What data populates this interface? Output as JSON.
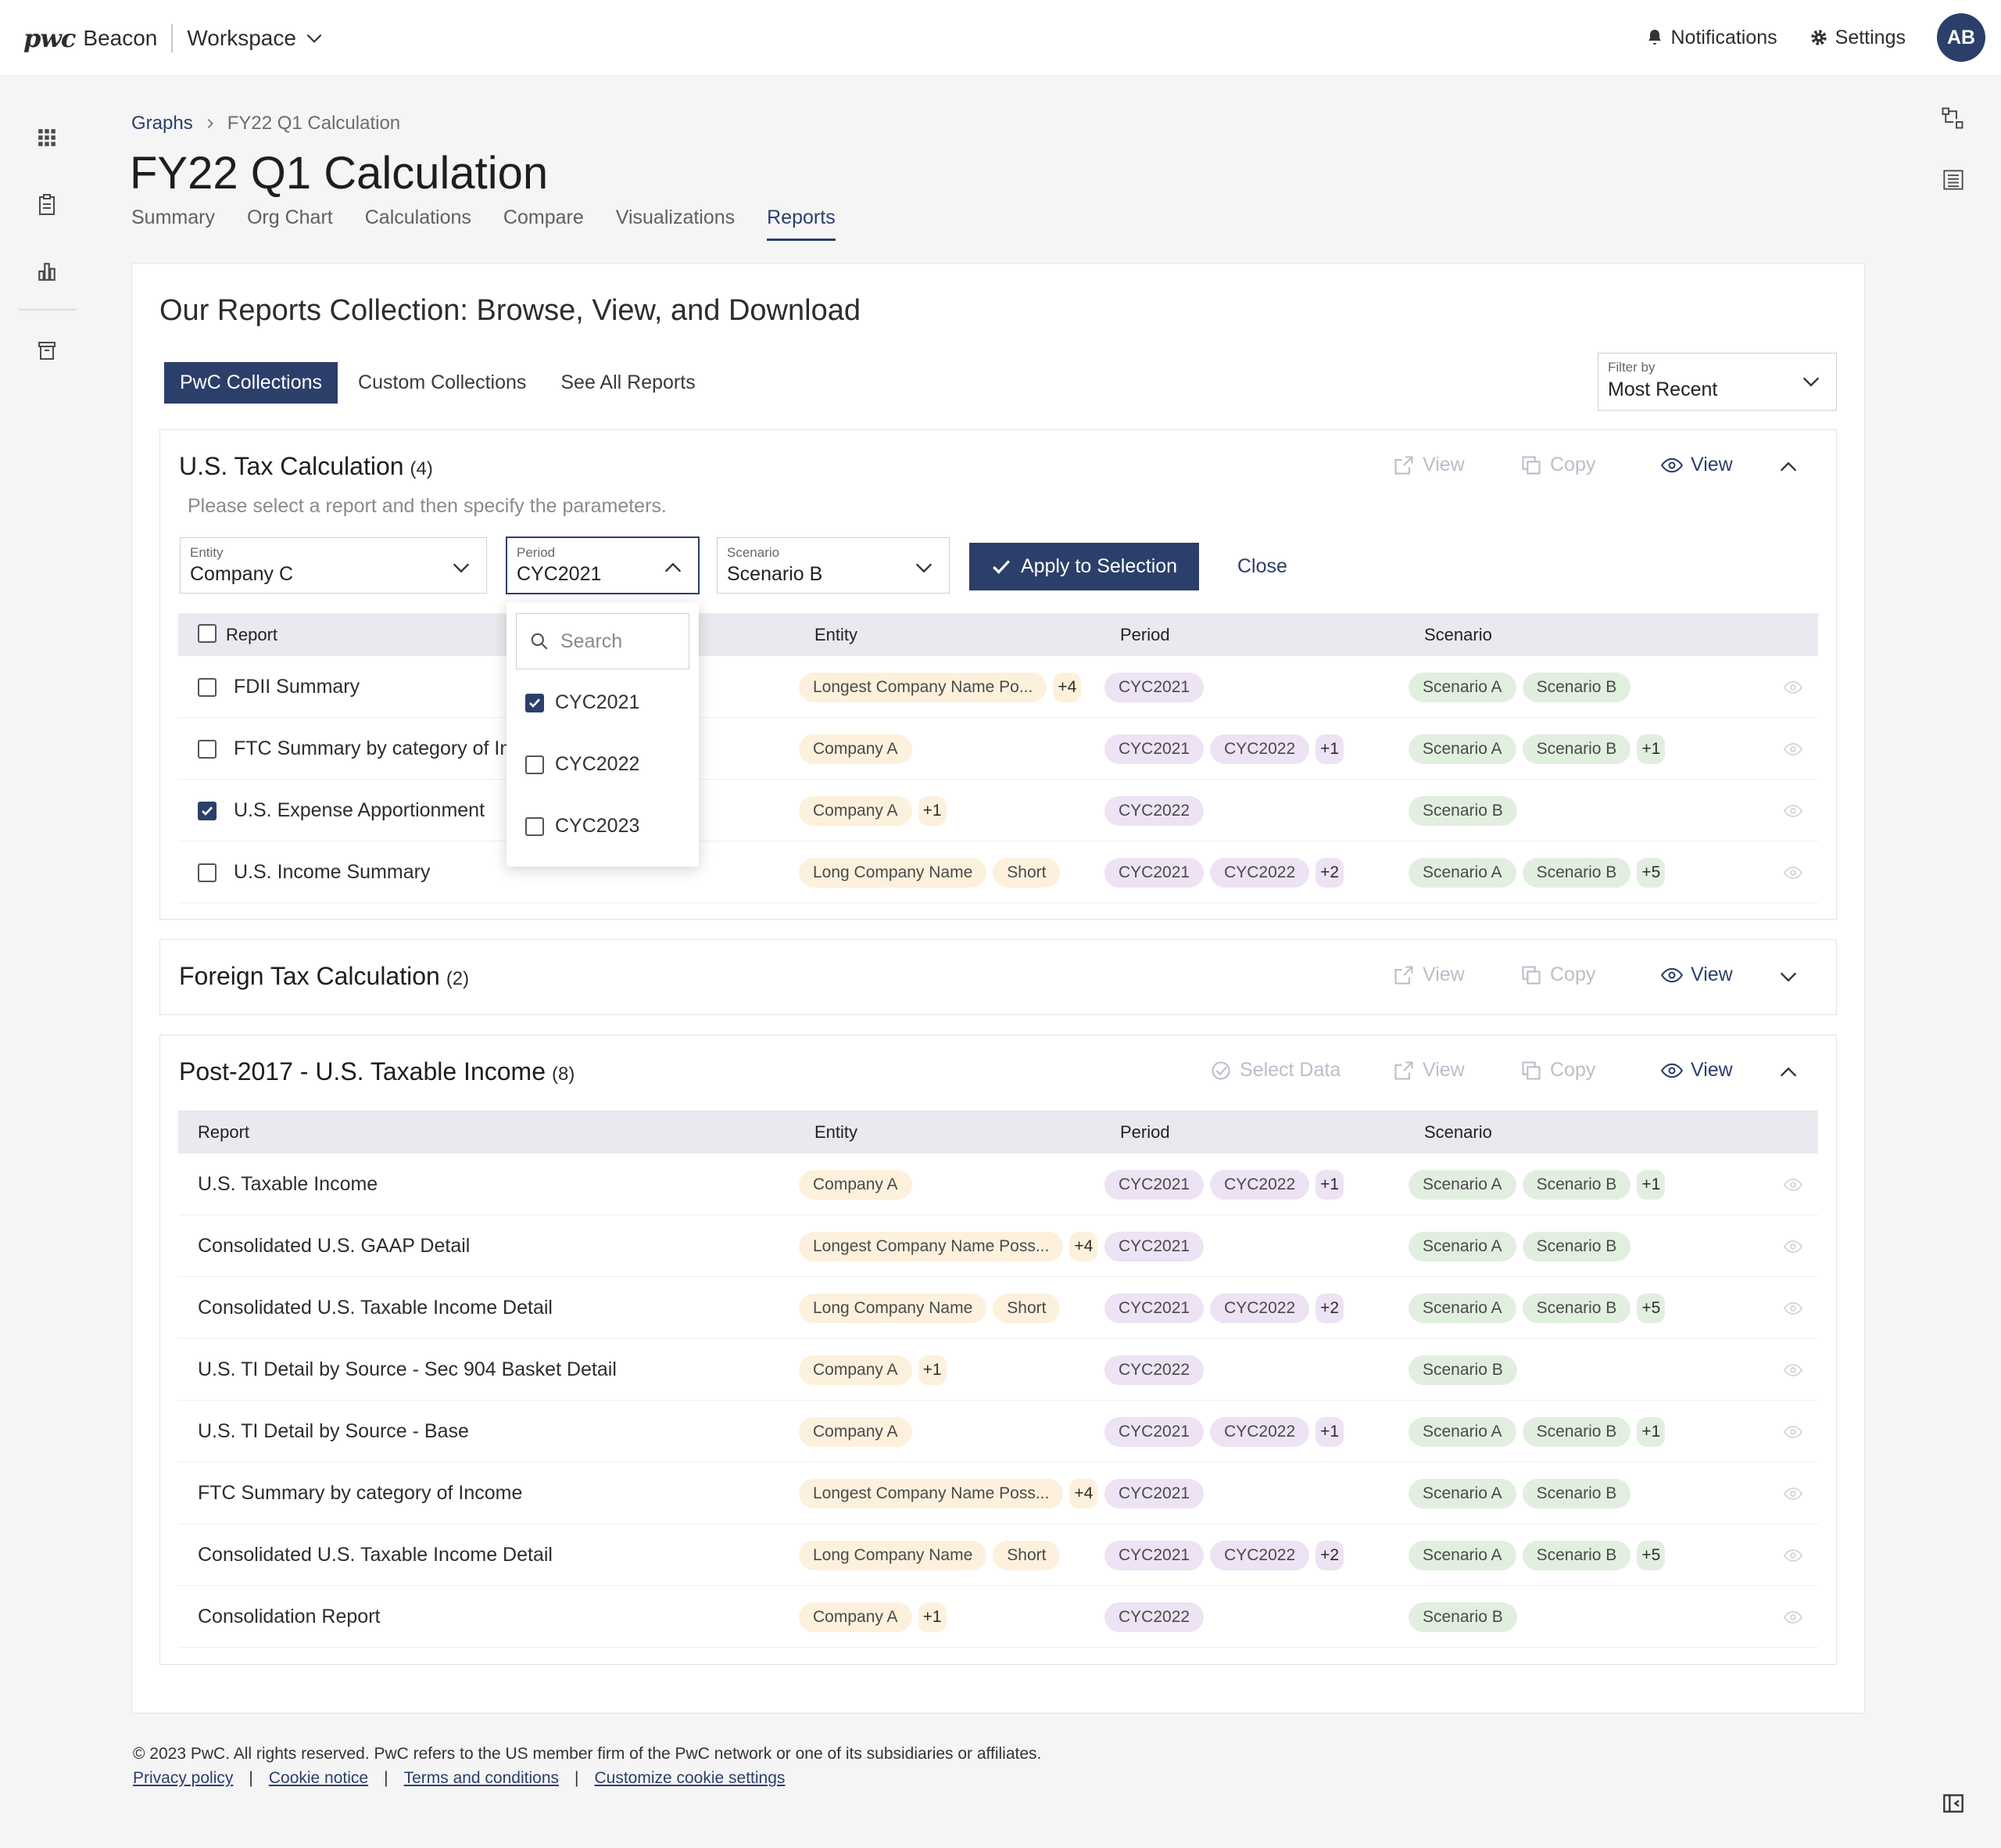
{
  "header": {
    "brand": "pwc",
    "product": "Beacon",
    "workspace": "Workspace",
    "notifications": "Notifications",
    "settings": "Settings",
    "avatar": "AB"
  },
  "breadcrumb": {
    "parent": "Graphs",
    "current": "FY22 Q1 Calculation"
  },
  "page_title": "FY22 Q1 Calculation",
  "tabs": [
    "Summary",
    "Org Chart",
    "Calculations",
    "Compare",
    "Visualizations",
    "Reports"
  ],
  "active_tab": "Reports",
  "card_title": "Our Reports Collection: Browse, View, and Download",
  "collection_tabs": [
    "PwC Collections",
    "Custom Collections",
    "See All Reports"
  ],
  "filter": {
    "label": "Filter by",
    "value": "Most Recent"
  },
  "actions": {
    "view": "View",
    "copy": "Copy",
    "view2": "View",
    "select_data": "Select Data"
  },
  "columns": {
    "report": "Report",
    "entity": "Entity",
    "period": "Period",
    "scenario": "Scenario"
  },
  "section1": {
    "title": "U.S. Tax Calculation",
    "count": "(4)",
    "hint": "Please select a report and then specify the parameters.",
    "entity": {
      "label": "Entity",
      "value": "Company C"
    },
    "period": {
      "label": "Period",
      "value": "CYC2021"
    },
    "scenario": {
      "label": "Scenario",
      "value": "Scenario B"
    },
    "apply": "Apply to Selection",
    "close": "Close",
    "rows": [
      {
        "name": "FDII Summary",
        "entity": [
          "Longest Company Name Po..."
        ],
        "entity_more": "+4",
        "period": [
          "CYC2021"
        ],
        "period_more": "",
        "scenario": [
          "Scenario A",
          "Scenario B"
        ],
        "scenario_more": ""
      },
      {
        "name": "FTC Summary by category of Income",
        "entity": [
          "Company A"
        ],
        "entity_more": "",
        "period": [
          "CYC2021",
          "CYC2022"
        ],
        "period_more": "+1",
        "scenario": [
          "Scenario A",
          "Scenario B"
        ],
        "scenario_more": "+1"
      },
      {
        "name": "U.S. Expense Apportionment",
        "entity": [
          "Company A"
        ],
        "entity_more": "+1",
        "period": [
          "CYC2022"
        ],
        "period_more": "",
        "scenario": [
          "Scenario B"
        ],
        "scenario_more": ""
      },
      {
        "name": "U.S. Income Summary",
        "entity": [
          "Long Company Name",
          "Short"
        ],
        "entity_more": "",
        "period": [
          "CYC2021",
          "CYC2022"
        ],
        "period_more": "+2",
        "scenario": [
          "Scenario A",
          "Scenario B"
        ],
        "scenario_more": "+5"
      }
    ],
    "dropdown": {
      "search": "Search",
      "options": [
        "CYC2021",
        "CYC2022",
        "CYC2023"
      ]
    }
  },
  "section2": {
    "title": "Foreign Tax Calculation",
    "count": "(2)"
  },
  "section3": {
    "title": "Post-2017 - U.S. Taxable Income",
    "count": "(8)",
    "rows": [
      {
        "name": "U.S. Taxable Income",
        "entity": [
          "Company A"
        ],
        "entity_more": "",
        "period": [
          "CYC2021",
          "CYC2022"
        ],
        "period_more": "+1",
        "scenario": [
          "Scenario A",
          "Scenario B"
        ],
        "scenario_more": "+1"
      },
      {
        "name": "Consolidated U.S. GAAP Detail",
        "entity": [
          "Longest Company Name Poss..."
        ],
        "entity_more": "+4",
        "period": [
          "CYC2021"
        ],
        "period_more": "",
        "scenario": [
          "Scenario A",
          "Scenario B"
        ],
        "scenario_more": ""
      },
      {
        "name": "Consolidated U.S. Taxable Income Detail",
        "entity": [
          "Long Company Name",
          "Short"
        ],
        "entity_more": "",
        "period": [
          "CYC2021",
          "CYC2022"
        ],
        "period_more": "+2",
        "scenario": [
          "Scenario A",
          "Scenario B"
        ],
        "scenario_more": "+5"
      },
      {
        "name": "U.S. TI Detail by Source - Sec 904 Basket Detail",
        "entity": [
          "Company A"
        ],
        "entity_more": "+1",
        "period": [
          "CYC2022"
        ],
        "period_more": "",
        "scenario": [
          "Scenario B"
        ],
        "scenario_more": ""
      },
      {
        "name": "U.S. TI Detail by Source - Base",
        "entity": [
          "Company A"
        ],
        "entity_more": "",
        "period": [
          "CYC2021",
          "CYC2022"
        ],
        "period_more": "+1",
        "scenario": [
          "Scenario A",
          "Scenario B"
        ],
        "scenario_more": "+1"
      },
      {
        "name": "FTC Summary by category of Income",
        "entity": [
          "Longest Company Name Poss..."
        ],
        "entity_more": "+4",
        "period": [
          "CYC2021"
        ],
        "period_more": "",
        "scenario": [
          "Scenario A",
          "Scenario B"
        ],
        "scenario_more": ""
      },
      {
        "name": "Consolidated U.S. Taxable Income Detail",
        "entity": [
          "Long Company Name",
          "Short"
        ],
        "entity_more": "",
        "period": [
          "CYC2021",
          "CYC2022"
        ],
        "period_more": "+2",
        "scenario": [
          "Scenario A",
          "Scenario B"
        ],
        "scenario_more": "+5"
      },
      {
        "name": "Consolidation Report",
        "entity": [
          "Company A"
        ],
        "entity_more": "+1",
        "period": [
          "CYC2022"
        ],
        "period_more": "",
        "scenario": [
          "Scenario B"
        ],
        "scenario_more": ""
      }
    ]
  },
  "footer": {
    "copyright": "© 2023 PwC. All rights reserved. PwC refers to the US member firm of the PwC network or one of its subsidiaries or affiliates.",
    "links": [
      "Privacy policy",
      "Cookie notice",
      "Terms and conditions",
      "Customize cookie settings"
    ]
  },
  "colors": {
    "primary": "#2b3f6a",
    "entity_tag": "#fdf1dd",
    "period_tag": "#ede3f4",
    "scenario_tag": "#e2efe0"
  }
}
